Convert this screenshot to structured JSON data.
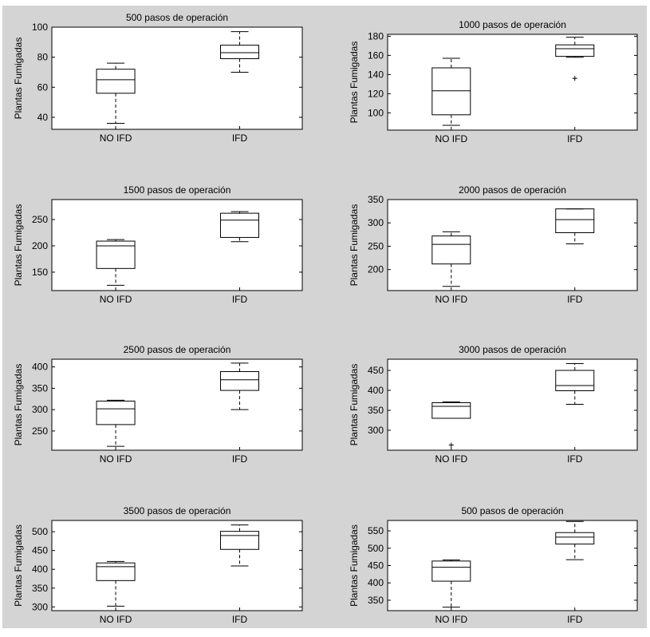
{
  "figure": {
    "background": "#d4d4d4",
    "axes_background": "#ffffff",
    "line_color": "#000000",
    "ylabel": "Plantas Fumigadas"
  },
  "chart_data": [
    {
      "type": "box",
      "title": "500 pasos de operación",
      "ylabel": "Plantas Fumigadas",
      "categories": [
        "NO IFD",
        "IFD"
      ],
      "ylim": [
        32,
        100
      ],
      "yticks": [
        40,
        60,
        80,
        100
      ],
      "boxes": [
        {
          "label": "NO IFD",
          "min": 36,
          "q1": 56,
          "median": 65,
          "q3": 72,
          "max": 76,
          "outliers": []
        },
        {
          "label": "IFD",
          "min": 70,
          "q1": 79,
          "median": 83,
          "q3": 88,
          "max": 97,
          "outliers": []
        }
      ]
    },
    {
      "type": "box",
      "title": "1000 pasos de operación",
      "ylabel": "Plantas Fumigadas",
      "categories": [
        "NO IFD",
        "IFD"
      ],
      "ylim": [
        82,
        182
      ],
      "yticks": [
        100,
        120,
        140,
        160,
        180
      ],
      "boxes": [
        {
          "label": "NO IFD",
          "min": 87,
          "q1": 98,
          "median": 123,
          "q3": 147,
          "max": 157,
          "outliers": []
        },
        {
          "label": "IFD",
          "min": 158,
          "q1": 159,
          "median": 167,
          "q3": 171,
          "max": 179,
          "outliers": [
            136
          ]
        }
      ]
    },
    {
      "type": "box",
      "title": "1500 pasos de operación",
      "ylabel": "Plantas Fumigadas",
      "categories": [
        "NO IFD",
        "IFD"
      ],
      "ylim": [
        115,
        288
      ],
      "yticks": [
        150,
        200,
        250
      ],
      "boxes": [
        {
          "label": "NO IFD",
          "min": 125,
          "q1": 157,
          "median": 200,
          "q3": 209,
          "max": 212,
          "outliers": []
        },
        {
          "label": "IFD",
          "min": 208,
          "q1": 216,
          "median": 249,
          "q3": 262,
          "max": 265,
          "outliers": []
        }
      ]
    },
    {
      "type": "box",
      "title": "2000 pasos de operación",
      "ylabel": "Plantas Fumigadas",
      "categories": [
        "NO IFD",
        "IFD"
      ],
      "ylim": [
        155,
        350
      ],
      "yticks": [
        200,
        250,
        300,
        350
      ],
      "boxes": [
        {
          "label": "NO IFD",
          "min": 164,
          "q1": 212,
          "median": 254,
          "q3": 272,
          "max": 281,
          "outliers": []
        },
        {
          "label": "IFD",
          "min": 255,
          "q1": 279,
          "median": 307,
          "q3": 330,
          "max": 330,
          "outliers": []
        }
      ]
    },
    {
      "type": "box",
      "title": "2500 pasos de operación",
      "ylabel": "Plantas Fumigadas",
      "categories": [
        "NO IFD",
        "IFD"
      ],
      "ylim": [
        205,
        418
      ],
      "yticks": [
        250,
        300,
        350,
        400
      ],
      "boxes": [
        {
          "label": "NO IFD",
          "min": 214,
          "q1": 265,
          "median": 302,
          "q3": 320,
          "max": 322,
          "outliers": []
        },
        {
          "label": "IFD",
          "min": 300,
          "q1": 345,
          "median": 370,
          "q3": 389,
          "max": 409,
          "outliers": []
        }
      ]
    },
    {
      "type": "box",
      "title": "3000 pasos de operación",
      "ylabel": "Plantas Fumigadas",
      "categories": [
        "NO IFD",
        "IFD"
      ],
      "ylim": [
        250,
        478
      ],
      "yticks": [
        300,
        350,
        400,
        450
      ],
      "boxes": [
        {
          "label": "NO IFD",
          "min": 330,
          "q1": 330,
          "median": 360,
          "q3": 369,
          "max": 371,
          "outliers": [
            263
          ]
        },
        {
          "label": "IFD",
          "min": 365,
          "q1": 399,
          "median": 412,
          "q3": 450,
          "max": 467,
          "outliers": []
        }
      ]
    },
    {
      "type": "box",
      "title": "3500 pasos de operación",
      "ylabel": "Plantas Fumigadas",
      "categories": [
        "NO IFD",
        "IFD"
      ],
      "ylim": [
        290,
        530
      ],
      "yticks": [
        300,
        350,
        400,
        450,
        500
      ],
      "boxes": [
        {
          "label": "NO IFD",
          "min": 302,
          "q1": 370,
          "median": 407,
          "q3": 417,
          "max": 421,
          "outliers": []
        },
        {
          "label": "IFD",
          "min": 409,
          "q1": 453,
          "median": 490,
          "q3": 501,
          "max": 518,
          "outliers": []
        }
      ]
    },
    {
      "type": "box",
      "title": "500 pasos de operación",
      "ylabel": "Plantas Fumigadas",
      "categories": [
        "NO IFD",
        "IFD"
      ],
      "ylim": [
        320,
        580
      ],
      "yticks": [
        350,
        400,
        450,
        500,
        550
      ],
      "boxes": [
        {
          "label": "NO IFD",
          "min": 330,
          "q1": 405,
          "median": 445,
          "q3": 463,
          "max": 466,
          "outliers": []
        },
        {
          "label": "IFD",
          "min": 467,
          "q1": 512,
          "median": 532,
          "q3": 545,
          "max": 577,
          "outliers": []
        }
      ]
    }
  ]
}
